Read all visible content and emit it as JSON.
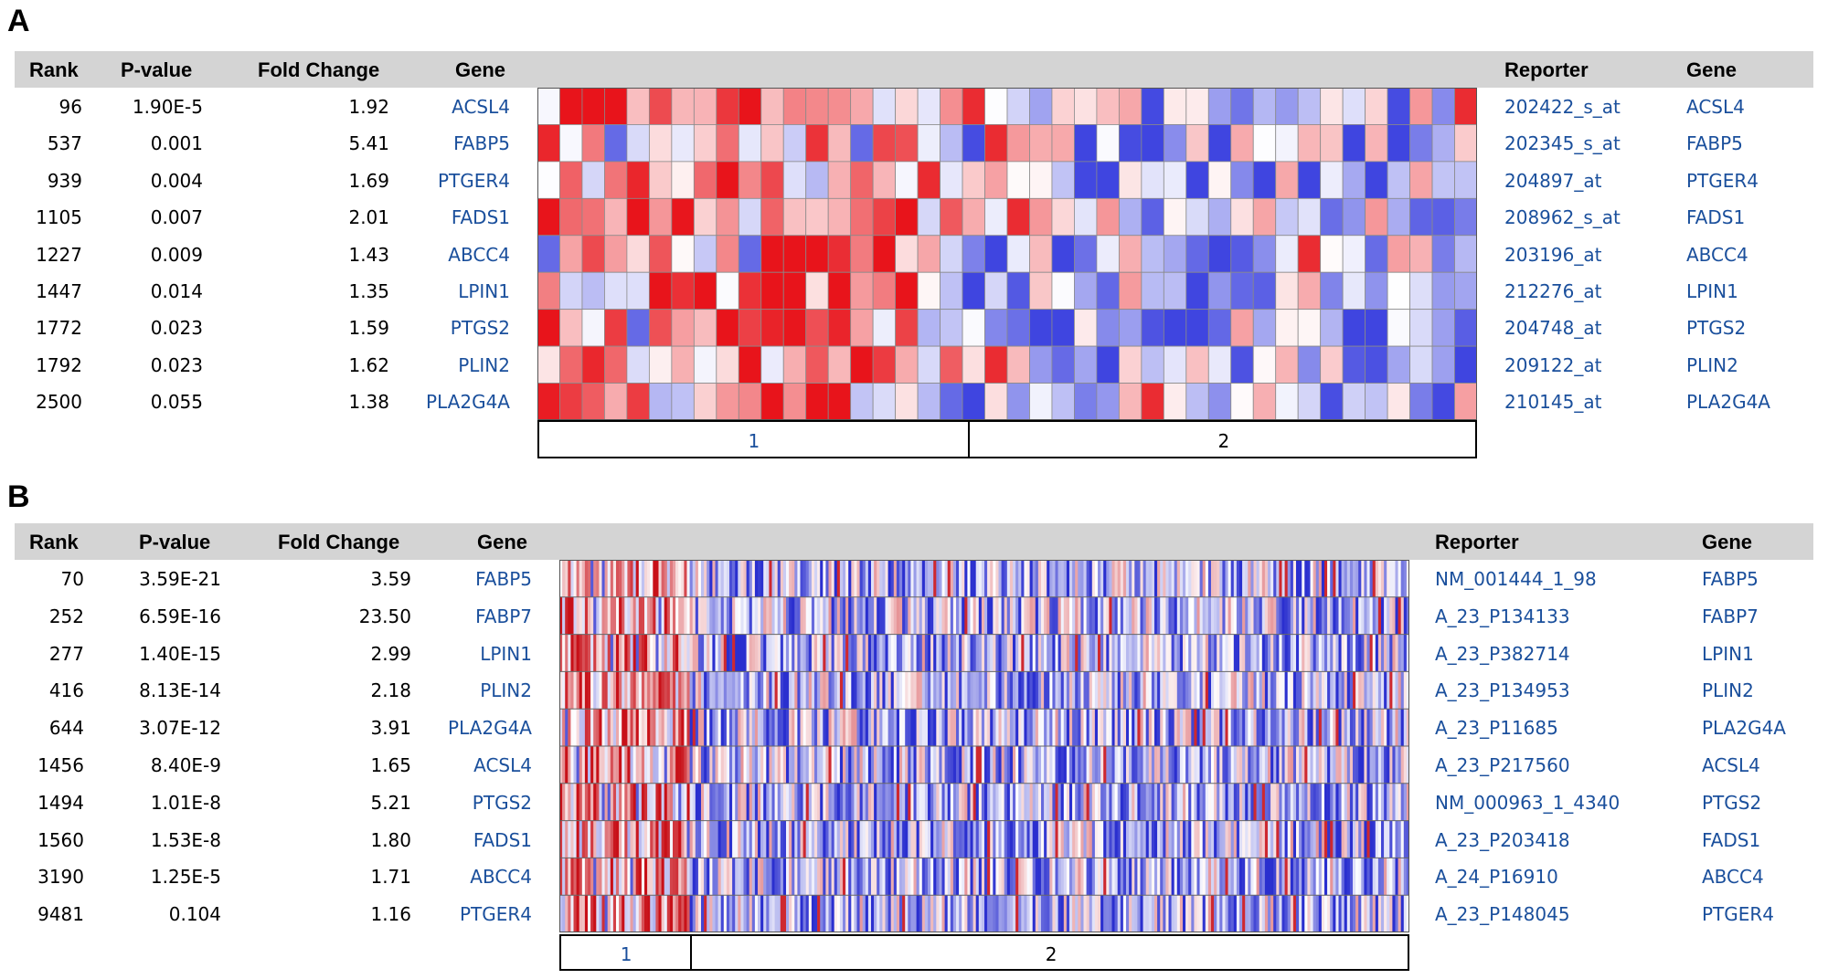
{
  "panels": [
    {
      "label": "A",
      "headers": {
        "rank": "Rank",
        "pvalue": "P-value",
        "fold": "Fold Change",
        "gene": "Gene",
        "reporter": "Reporter",
        "gene2": "Gene"
      },
      "rows": [
        {
          "rank": "96",
          "pvalue": "1.90E-5",
          "fold": "1.92",
          "gene": "ACSL4",
          "reporter": "202422_s_at",
          "gene2": "ACSL4"
        },
        {
          "rank": "537",
          "pvalue": "0.001",
          "fold": "5.41",
          "gene": "FABP5",
          "reporter": "202345_s_at",
          "gene2": "FABP5"
        },
        {
          "rank": "939",
          "pvalue": "0.004",
          "fold": "1.69",
          "gene": "PTGER4",
          "reporter": "204897_at",
          "gene2": "PTGER4"
        },
        {
          "rank": "1105",
          "pvalue": "0.007",
          "fold": "2.01",
          "gene": "FADS1",
          "reporter": "208962_s_at",
          "gene2": "FADS1"
        },
        {
          "rank": "1227",
          "pvalue": "0.009",
          "fold": "1.43",
          "gene": "ABCC4",
          "reporter": "203196_at",
          "gene2": "ABCC4"
        },
        {
          "rank": "1447",
          "pvalue": "0.014",
          "fold": "1.35",
          "gene": "LPIN1",
          "reporter": "212276_at",
          "gene2": "LPIN1"
        },
        {
          "rank": "1772",
          "pvalue": "0.023",
          "fold": "1.59",
          "gene": "PTGS2",
          "reporter": "204748_at",
          "gene2": "PTGS2"
        },
        {
          "rank": "1792",
          "pvalue": "0.023",
          "fold": "1.62",
          "gene": "PLIN2",
          "reporter": "209122_at",
          "gene2": "PLIN2"
        },
        {
          "rank": "2500",
          "pvalue": "0.055",
          "fold": "1.38",
          "gene": "PLA2G4A",
          "reporter": "210145_at",
          "gene2": "PLA2G4A"
        }
      ],
      "groups": [
        "1",
        "2"
      ],
      "group_split_fraction": 0.457,
      "heatmap_columns": 42
    },
    {
      "label": "B",
      "headers": {
        "rank": "Rank",
        "pvalue": "P-value",
        "fold": "Fold Change",
        "gene": "Gene",
        "reporter": "Reporter",
        "gene2": "Gene"
      },
      "rows": [
        {
          "rank": "70",
          "pvalue": "3.59E-21",
          "fold": "3.59",
          "gene": "FABP5",
          "reporter": "NM_001444_1_98",
          "gene2": "FABP5"
        },
        {
          "rank": "252",
          "pvalue": "6.59E-16",
          "fold": "23.50",
          "gene": "FABP7",
          "reporter": "A_23_P134133",
          "gene2": "FABP7"
        },
        {
          "rank": "277",
          "pvalue": "1.40E-15",
          "fold": "2.99",
          "gene": "LPIN1",
          "reporter": "A_23_P382714",
          "gene2": "LPIN1"
        },
        {
          "rank": "416",
          "pvalue": "8.13E-14",
          "fold": "2.18",
          "gene": "PLIN2",
          "reporter": "A_23_P134953",
          "gene2": "PLIN2"
        },
        {
          "rank": "644",
          "pvalue": "3.07E-12",
          "fold": "3.91",
          "gene": "PLA2G4A",
          "reporter": "A_23_P11685",
          "gene2": "PLA2G4A"
        },
        {
          "rank": "1456",
          "pvalue": "8.40E-9",
          "fold": "1.65",
          "gene": "ACSL4",
          "reporter": "A_23_P217560",
          "gene2": "ACSL4"
        },
        {
          "rank": "1494",
          "pvalue": "1.01E-8",
          "fold": "5.21",
          "gene": "PTGS2",
          "reporter": "NM_000963_1_4340",
          "gene2": "PTGS2"
        },
        {
          "rank": "1560",
          "pvalue": "1.53E-8",
          "fold": "1.80",
          "gene": "FADS1",
          "reporter": "A_23_P203418",
          "gene2": "FADS1"
        },
        {
          "rank": "3190",
          "pvalue": "1.25E-5",
          "fold": "1.71",
          "gene": "ABCC4",
          "reporter": "A_24_P16910",
          "gene2": "ABCC4"
        },
        {
          "rank": "9481",
          "pvalue": "0.104",
          "fold": "1.16",
          "gene": "PTGER4",
          "reporter": "A_23_P148045",
          "gene2": "PTGER4"
        }
      ],
      "groups": [
        "1",
        "2"
      ],
      "group_split_fraction": 0.153,
      "heatmap_columns": 300
    }
  ],
  "chart_data": [
    {
      "type": "heatmap",
      "rows": [
        "ACSL4",
        "FABP5",
        "PTGER4",
        "FADS1",
        "ABCC4",
        "LPIN1",
        "PTGS2",
        "PLIN2",
        "PLA2G4A"
      ],
      "column_groups": [
        "1",
        "2"
      ],
      "colors": {
        "high": "#e8141b",
        "low": "#3f45e0",
        "mid": "#ffffff"
      }
    },
    {
      "type": "heatmap",
      "rows": [
        "FABP5",
        "FABP7",
        "LPIN1",
        "PLIN2",
        "PLA2G4A",
        "ACSL4",
        "PTGS2",
        "FADS1",
        "ABCC4",
        "PTGER4"
      ],
      "column_groups": [
        "1",
        "2"
      ],
      "colors": {
        "high": "#c81018",
        "low": "#2a2fcf",
        "mid": "#ffffff"
      }
    }
  ]
}
